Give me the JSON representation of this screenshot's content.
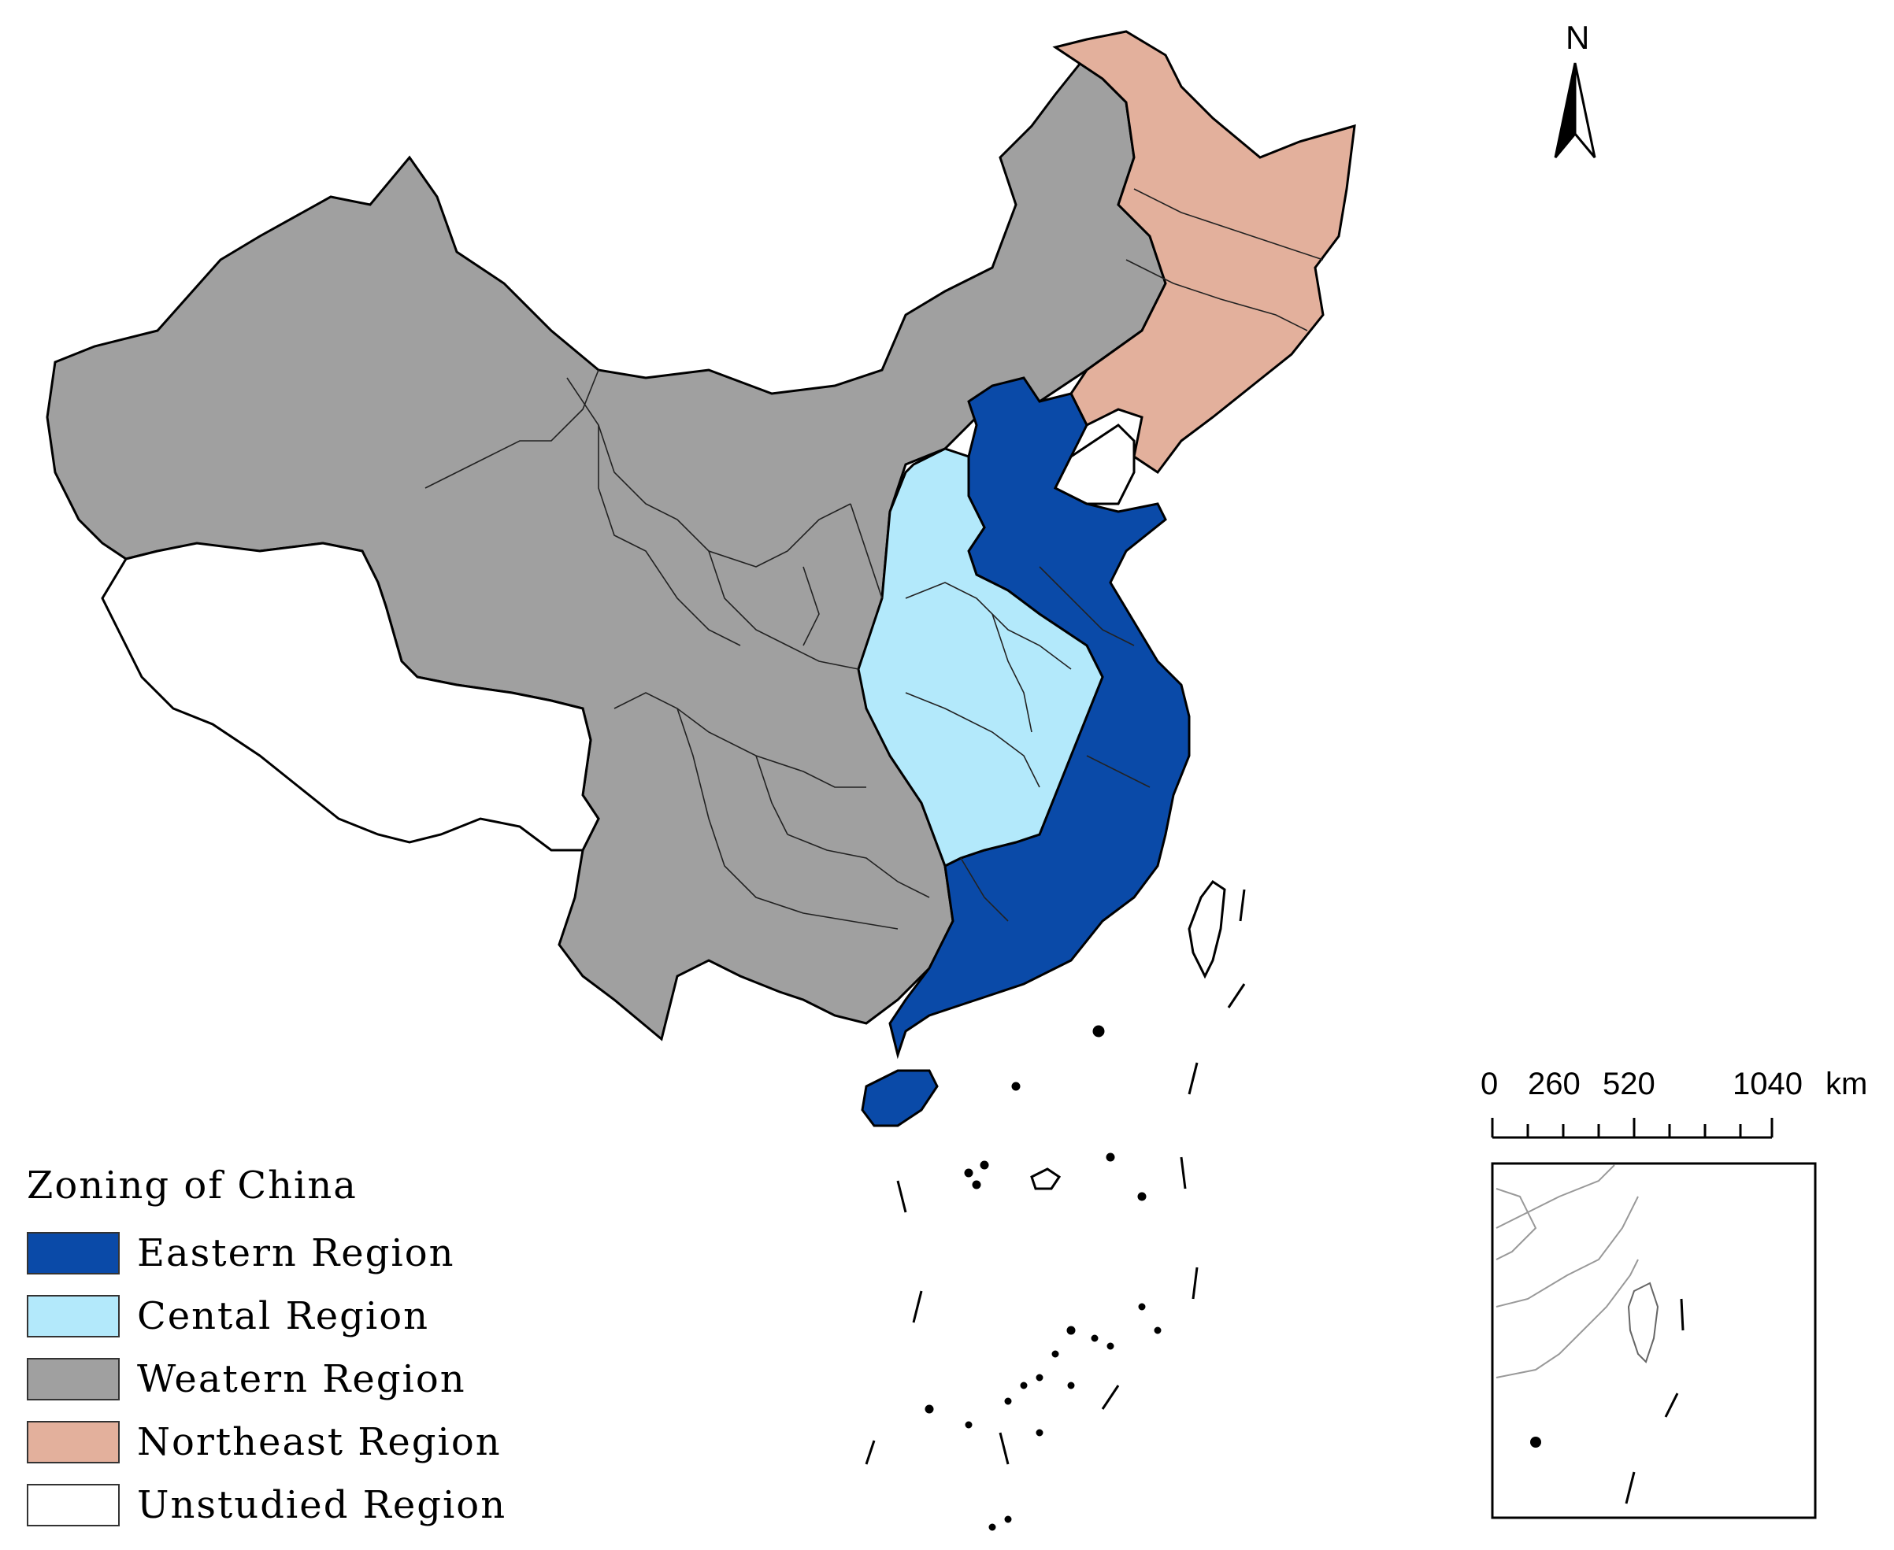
{
  "map": {
    "north_label": "N",
    "scale_bar": {
      "ticks": [
        "0",
        "260",
        "520",
        "1040"
      ],
      "unit": "km"
    }
  },
  "legend": {
    "title": "Zoning of China",
    "items": [
      {
        "label": "Eastern Region",
        "color": "#0a4aa8"
      },
      {
        "label": "Cental Region",
        "color": "#b3e9fb"
      },
      {
        "label": "Weatern Region",
        "color": "#a0a0a0"
      },
      {
        "label": "Northeast Region",
        "color": "#e3b09c"
      },
      {
        "label": "Unstudied Region",
        "color": "#ffffff"
      }
    ]
  }
}
